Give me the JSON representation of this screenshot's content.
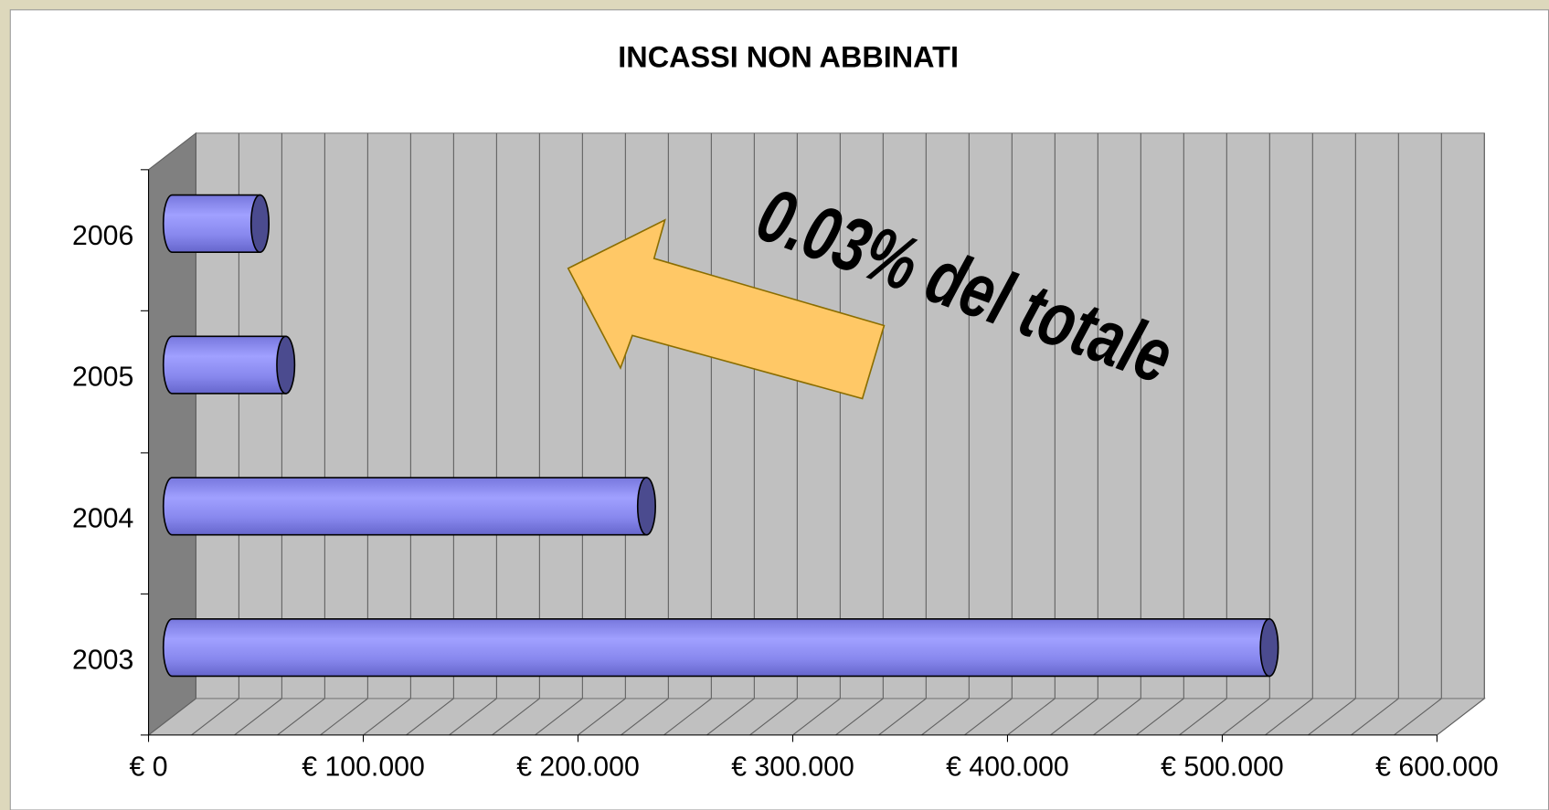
{
  "chart_data": {
    "type": "bar",
    "orientation": "horizontal",
    "title": "INCASSI NON ABBINATI",
    "categories": [
      "2003",
      "2004",
      "2005",
      "2006"
    ],
    "values": [
      515000,
      225000,
      57000,
      45000
    ],
    "color": "#9999ff",
    "xlim": [
      0,
      600000
    ],
    "xticks": [
      {
        "value": 0,
        "label": "€ 0"
      },
      {
        "value": 100000,
        "label": "€ 100.000"
      },
      {
        "value": 200000,
        "label": "€ 200.000"
      },
      {
        "value": 300000,
        "label": "€ 300.000"
      },
      {
        "value": 400000,
        "label": "€ 400.000"
      },
      {
        "value": 500000,
        "label": "€ 500.000"
      },
      {
        "value": 600000,
        "label": "€ 600.000"
      }
    ],
    "minor_xticks": [
      0,
      20000,
      40000,
      60000,
      80000,
      100000,
      120000,
      140000,
      160000,
      180000,
      200000,
      220000,
      240000,
      260000,
      280000,
      300000,
      320000,
      340000,
      360000,
      380000,
      400000,
      420000,
      440000,
      460000,
      480000,
      500000,
      520000,
      540000,
      560000,
      580000,
      600000
    ],
    "grid": true,
    "annotation": "0.03% del totale"
  }
}
